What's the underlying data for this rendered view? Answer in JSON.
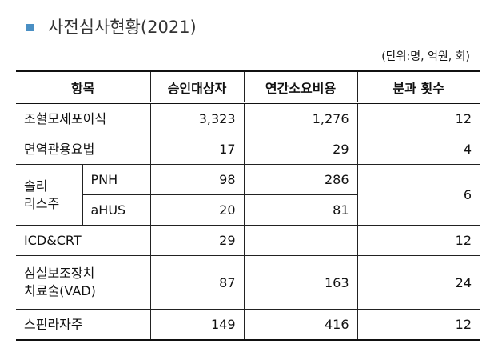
{
  "header": {
    "title": "사전심사현황(2021)",
    "unit": "(단위:명, 억원, 회)"
  },
  "table": {
    "columns": [
      "항목",
      "승인대상자",
      "연간소요비용",
      "분과 횟수"
    ],
    "rows": [
      {
        "item": "조혈모세포이식",
        "approved": "3,323",
        "cost": "1,276",
        "sessions": "12"
      },
      {
        "item": "면역관용요법",
        "approved": "17",
        "cost": "29",
        "sessions": "4"
      },
      {
        "item": "솔리\n리스주",
        "subrows": [
          {
            "item": "PNH",
            "approved": "98",
            "cost": "286"
          },
          {
            "item": "aHUS",
            "approved": "20",
            "cost": "81"
          }
        ],
        "sessions": "6"
      },
      {
        "item": "ICD&CRT",
        "approved": "29",
        "sessions": "12"
      },
      {
        "item": "심실보조장치\n치료술(VAD)",
        "approved": "87",
        "cost": "163",
        "sessions": "24"
      },
      {
        "item": "스핀라자주",
        "approved": "149",
        "cost": "416",
        "sessions": "12"
      }
    ]
  }
}
